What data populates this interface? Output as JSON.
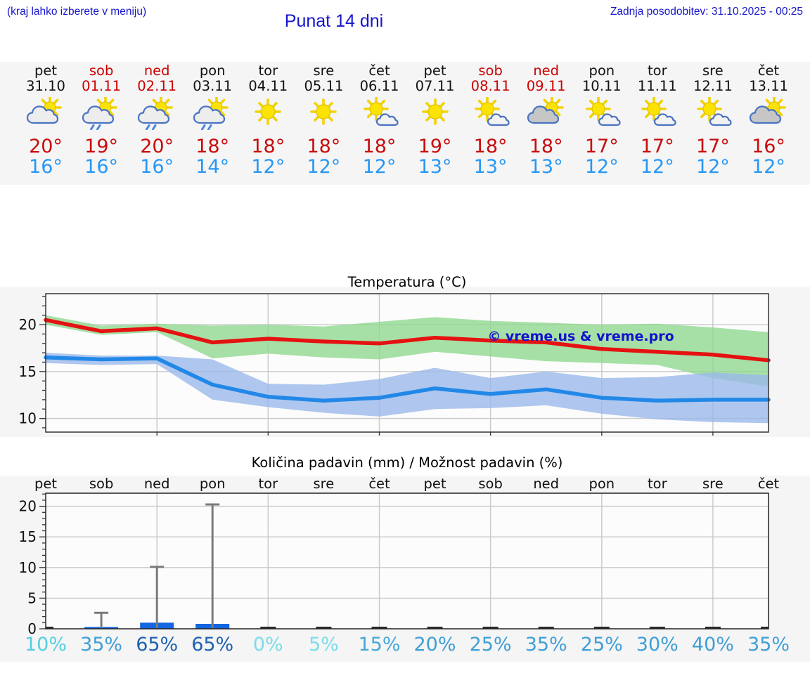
{
  "header": {
    "menu_hint": "(kraj lahko izberete v meniju)",
    "title": "Punat 14 dni",
    "last_update": "Zadnja posodobitev: 31.10.2025 - 00:25"
  },
  "colors": {
    "header_text": "#1515cd",
    "weekend_day": "#cc0000",
    "weekday": "#111111",
    "high_temp_text": "#c90c0c",
    "low_temp_text": "#2697f5",
    "strip_background": "#f5f5f5",
    "plot_background": "#fcfcfc",
    "gridline": "#c9c9c9"
  },
  "days": [
    {
      "label": "pet",
      "date": "31.10",
      "weekend": false,
      "icon": "sun-cloud",
      "high": "20°",
      "low": "16°",
      "precip_pct": "10%",
      "precip_pct_color": "#55cfe0"
    },
    {
      "label": "sob",
      "date": "01.11",
      "weekend": true,
      "icon": "sun-cloud-rain",
      "high": "19°",
      "low": "16°",
      "precip_pct": "35%",
      "precip_pct_color": "#3f9fd6"
    },
    {
      "label": "ned",
      "date": "02.11",
      "weekend": true,
      "icon": "sun-cloud-rain",
      "high": "20°",
      "low": "16°",
      "precip_pct": "65%",
      "precip_pct_color": "#1e61b2"
    },
    {
      "label": "pon",
      "date": "03.11",
      "weekend": false,
      "icon": "sun-cloud-rain",
      "high": "18°",
      "low": "14°",
      "precip_pct": "65%",
      "precip_pct_color": "#1e61b2"
    },
    {
      "label": "tor",
      "date": "04.11",
      "weekend": false,
      "icon": "sun",
      "high": "18°",
      "low": "12°",
      "precip_pct": "0%",
      "precip_pct_color": "#7adde9"
    },
    {
      "label": "sre",
      "date": "05.11",
      "weekend": false,
      "icon": "sun",
      "high": "18°",
      "low": "12°",
      "precip_pct": "5%",
      "precip_pct_color": "#7adde9"
    },
    {
      "label": "čet",
      "date": "06.11",
      "weekend": false,
      "icon": "sun-small-cloud",
      "high": "18°",
      "low": "12°",
      "precip_pct": "15%",
      "precip_pct_color": "#45a8d8"
    },
    {
      "label": "pet",
      "date": "07.11",
      "weekend": false,
      "icon": "sun",
      "high": "19°",
      "low": "13°",
      "precip_pct": "20%",
      "precip_pct_color": "#3f9fd6"
    },
    {
      "label": "sob",
      "date": "08.11",
      "weekend": true,
      "icon": "sun-small-cloud",
      "high": "18°",
      "low": "13°",
      "precip_pct": "25%",
      "precip_pct_color": "#3f9fd6"
    },
    {
      "label": "ned",
      "date": "09.11",
      "weekend": true,
      "icon": "sun-gray-cloud",
      "high": "18°",
      "low": "13°",
      "precip_pct": "35%",
      "precip_pct_color": "#3f9fd6"
    },
    {
      "label": "pon",
      "date": "10.11",
      "weekend": false,
      "icon": "sun-small-cloud",
      "high": "17°",
      "low": "12°",
      "precip_pct": "25%",
      "precip_pct_color": "#3f9fd6"
    },
    {
      "label": "tor",
      "date": "11.11",
      "weekend": false,
      "icon": "sun-small-cloud",
      "high": "17°",
      "low": "12°",
      "precip_pct": "30%",
      "precip_pct_color": "#3f9fd6"
    },
    {
      "label": "sre",
      "date": "12.11",
      "weekend": false,
      "icon": "sun-small-cloud",
      "high": "17°",
      "low": "12°",
      "precip_pct": "40%",
      "precip_pct_color": "#3f9fd6"
    },
    {
      "label": "čet",
      "date": "13.11",
      "weekend": false,
      "icon": "sun-gray-cloud",
      "high": "16°",
      "low": "12°",
      "precip_pct": "35%",
      "precip_pct_color": "#3f9fd6"
    }
  ],
  "chart_data": [
    {
      "type": "line",
      "title": "Temperatura (°C)",
      "categories": [
        "31.10",
        "01.11",
        "02.11",
        "03.11",
        "04.11",
        "05.11",
        "06.11",
        "07.11",
        "08.11",
        "09.11",
        "10.11",
        "11.11",
        "12.11",
        "13.11"
      ],
      "ylim": [
        8.4,
        23.3
      ],
      "yticks": [
        10,
        15,
        20
      ],
      "grid": true,
      "watermark": "© vreme.us & vreme.pro",
      "watermark_color": "#1212cc",
      "series": [
        {
          "name": "max temperature",
          "color": "#e51212",
          "values": [
            20.5,
            19.3,
            19.6,
            18.1,
            18.5,
            18.2,
            18.0,
            18.6,
            18.3,
            18.1,
            17.4,
            17.1,
            16.8,
            16.2
          ]
        },
        {
          "name": "min temperature",
          "color": "#2288e8",
          "values": [
            16.5,
            16.3,
            16.4,
            13.6,
            12.3,
            11.9,
            12.2,
            13.2,
            12.6,
            13.1,
            12.2,
            11.9,
            12.0,
            12.0
          ]
        }
      ],
      "bands": [
        {
          "name": "max temperature range",
          "color": "#90d890",
          "upper": [
            21.0,
            19.9,
            20.1,
            19.9,
            20.0,
            19.8,
            20.3,
            20.8,
            20.4,
            20.2,
            20.0,
            20.1,
            19.7,
            19.2
          ],
          "lower": [
            20.0,
            18.9,
            19.2,
            16.4,
            16.9,
            16.5,
            16.3,
            17.1,
            16.6,
            16.1,
            15.9,
            15.7,
            14.3,
            13.4
          ]
        },
        {
          "name": "min temperature range",
          "color": "#9bb9ea",
          "upper": [
            17.0,
            16.7,
            16.7,
            16.3,
            13.7,
            13.6,
            14.2,
            15.4,
            14.3,
            15.0,
            14.3,
            14.4,
            14.9,
            14.6
          ],
          "lower": [
            15.9,
            15.7,
            15.8,
            12.0,
            11.2,
            10.6,
            10.2,
            11.0,
            11.1,
            11.4,
            10.5,
            9.9,
            9.6,
            9.5
          ]
        }
      ]
    },
    {
      "type": "bar",
      "title": "Količina padavin (mm) / Možnost padavin (%)",
      "categories": [
        "pet",
        "sob",
        "ned",
        "pon",
        "tor",
        "sre",
        "čet",
        "pet",
        "sob",
        "ned",
        "pon",
        "tor",
        "sre",
        "čet"
      ],
      "values": [
        0,
        0.3,
        1.0,
        0.8,
        0,
        0,
        0,
        0,
        0,
        0,
        0,
        0,
        0,
        0
      ],
      "whisker_max": [
        0,
        2.6,
        10.1,
        20.3,
        0,
        0,
        0,
        0,
        0,
        0,
        0,
        0,
        0,
        0
      ],
      "ylim": [
        0,
        22.2
      ],
      "yticks": [
        0,
        5,
        10,
        15,
        20
      ],
      "grid": true,
      "bar_color": "#1266e0",
      "whisker_color": "#7a7a7a",
      "probabilities": [
        "10%",
        "35%",
        "65%",
        "65%",
        "0%",
        "5%",
        "15%",
        "20%",
        "25%",
        "35%",
        "25%",
        "30%",
        "40%",
        "35%"
      ]
    }
  ]
}
